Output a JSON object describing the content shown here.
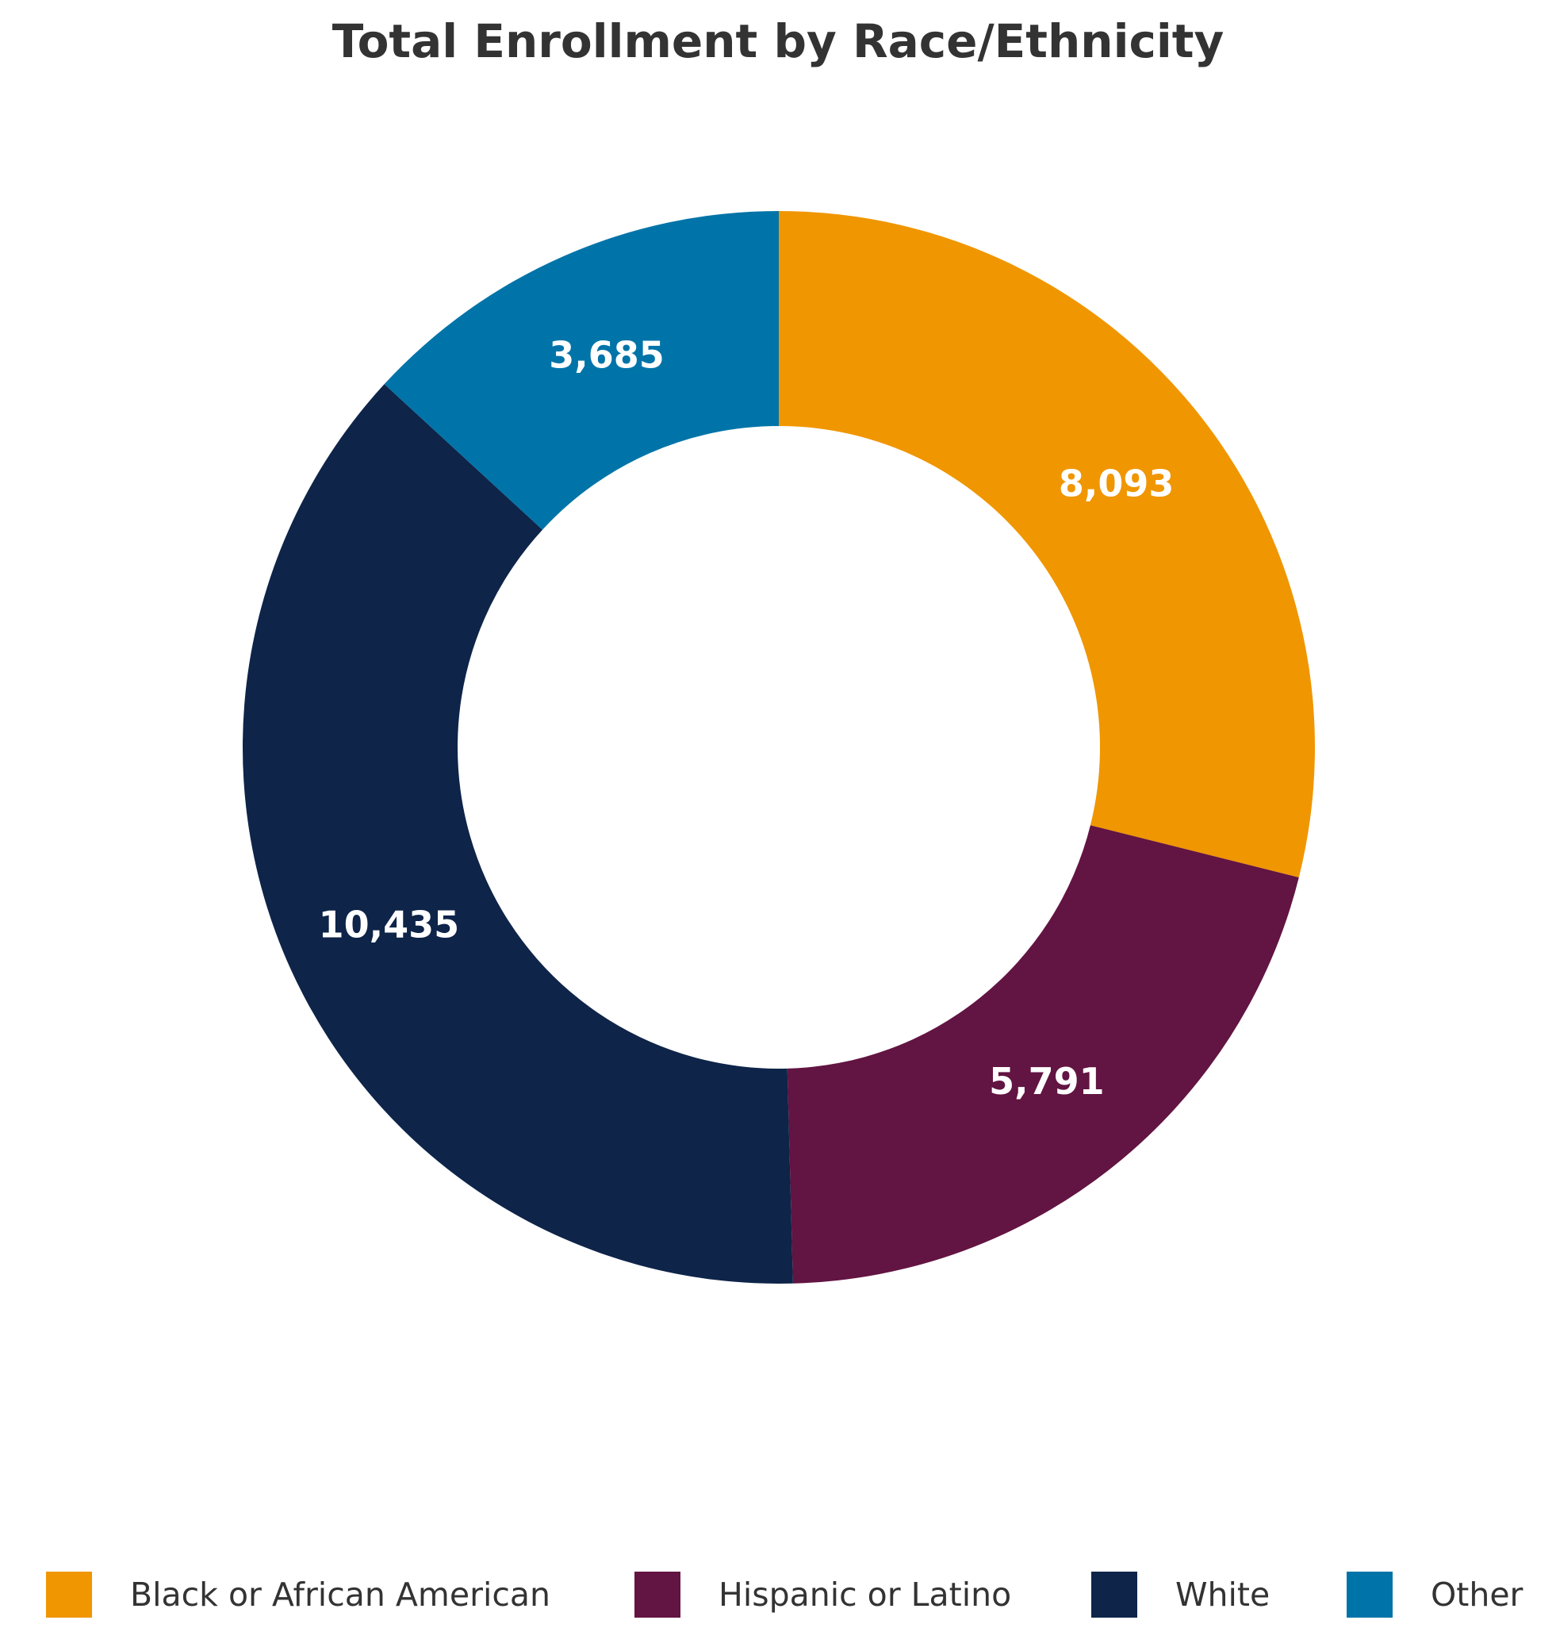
{
  "chart_data": {
    "type": "pie",
    "title": "Total Enrollment by Race/Ethnicity",
    "donut": true,
    "categories": [
      "Black or African American",
      "Hispanic or Latino",
      "White",
      "Other"
    ],
    "values": [
      8093,
      5791,
      10435,
      3685
    ],
    "value_labels": [
      "8,093",
      "5,791",
      "10,435",
      "3,685"
    ],
    "colors": [
      "#F09600",
      "#621442",
      "#0E2449",
      "#0074A8"
    ],
    "legend_position": "bottom"
  }
}
